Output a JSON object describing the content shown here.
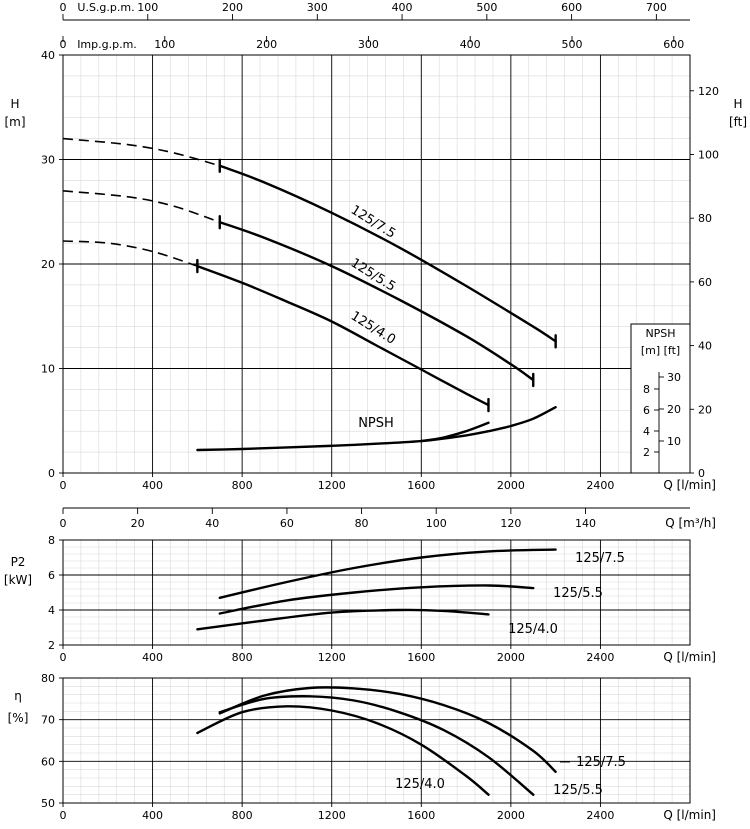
{
  "top_axes": {
    "usgpm": {
      "label": "U.S.g.p.m.",
      "ticks": [
        "0",
        "100",
        "200",
        "300",
        "400",
        "500",
        "600",
        "700"
      ],
      "values": [
        0,
        100,
        200,
        300,
        400,
        500,
        600,
        700
      ]
    },
    "impgpm": {
      "label": "Imp.g.p.m.",
      "ticks": [
        "0",
        "100",
        "200",
        "300",
        "400",
        "500",
        "600"
      ],
      "values": [
        0,
        100,
        200,
        300,
        400,
        500,
        600
      ]
    },
    "m3h": {
      "label": "Q [m³/h]",
      "ticks": [
        "0",
        "20",
        "40",
        "60",
        "80",
        "100",
        "120",
        "140"
      ],
      "values": [
        0,
        20,
        40,
        60,
        80,
        100,
        120,
        140
      ]
    }
  },
  "chart_data": [
    {
      "type": "line",
      "id": "head",
      "ylabel": "H [m]",
      "ylabel_right": "H [ft]",
      "xlabel": "Q [l/min]",
      "xlim": [
        0,
        2800
      ],
      "ylim": [
        0,
        40
      ],
      "x_ticks": [
        "0",
        "400",
        "800",
        "1200",
        "1600",
        "2000",
        "2400"
      ],
      "y_ticks": [
        "0",
        "10",
        "20",
        "30",
        "40"
      ],
      "y_right_ticks": [
        "0",
        "20",
        "40",
        "60",
        "80",
        "100",
        "120"
      ],
      "series": [
        {
          "name": "125/7.5",
          "x": [
            0,
            300,
            500,
            700,
            900,
            1200,
            1500,
            1800,
            2100,
            2200
          ],
          "y": [
            32,
            31.4,
            30.6,
            29.4,
            27.8,
            24.9,
            21.6,
            17.9,
            14,
            12.6
          ],
          "dashed_until": 700
        },
        {
          "name": "125/5.5",
          "x": [
            0,
            300,
            500,
            700,
            900,
            1200,
            1500,
            1800,
            2000,
            2100
          ],
          "y": [
            27,
            26.4,
            25.5,
            24,
            22.5,
            19.8,
            16.6,
            13.1,
            10.4,
            8.9
          ],
          "dashed_until": 700
        },
        {
          "name": "125/4.0",
          "x": [
            0,
            200,
            400,
            600,
            800,
            1000,
            1200,
            1400,
            1600,
            1800,
            1900
          ],
          "y": [
            22.2,
            22,
            21.2,
            19.8,
            18.2,
            16.4,
            14.5,
            12.2,
            9.9,
            7.6,
            6.5
          ],
          "dashed_until": 600
        }
      ],
      "npsh": {
        "label": "NPSH",
        "series": [
          {
            "x": [
              600,
              800,
              1000,
              1200,
              1400,
              1600,
              1700,
              1800,
              1900,
              2000,
              2100,
              2200
            ],
            "y": [
              2.2,
              2.3,
              2.45,
              2.6,
              2.8,
              3.05,
              3.3,
              3.6,
              4,
              4.5,
              5.2,
              6.3
            ]
          },
          {
            "x": [
              1600,
              1700,
              1800,
              1900
            ],
            "y": [
              3.05,
              3.4,
              4,
              4.8
            ]
          }
        ]
      },
      "npsh_box": {
        "title": "NPSH",
        "units": "[m] [ft]",
        "m_ticks": [
          "2",
          "4",
          "6",
          "8"
        ],
        "ft_ticks": [
          "10",
          "20",
          "30"
        ]
      }
    },
    {
      "type": "line",
      "id": "power",
      "ylabel": "P2 [kW]",
      "xlabel": "Q [l/min]",
      "xlim": [
        0,
        2800
      ],
      "ylim": [
        2,
        8
      ],
      "x_ticks": [
        "0",
        "400",
        "800",
        "1200",
        "1600",
        "2000",
        "2400"
      ],
      "y_ticks": [
        "2",
        "4",
        "6",
        "8"
      ],
      "series": [
        {
          "name": "125/7.5",
          "x": [
            700,
            1000,
            1300,
            1600,
            1900,
            2200
          ],
          "y": [
            4.7,
            5.6,
            6.4,
            7,
            7.35,
            7.45
          ]
        },
        {
          "name": "125/5.5",
          "x": [
            700,
            1000,
            1300,
            1600,
            1900,
            2100
          ],
          "y": [
            3.8,
            4.55,
            5,
            5.3,
            5.4,
            5.25
          ]
        },
        {
          "name": "125/4.0",
          "x": [
            600,
            900,
            1200,
            1500,
            1700,
            1900
          ],
          "y": [
            2.9,
            3.4,
            3.85,
            4,
            3.95,
            3.75
          ]
        }
      ]
    },
    {
      "type": "line",
      "id": "efficiency",
      "ylabel": "η [%]",
      "xlabel": "Q [l/min]",
      "xlim": [
        0,
        2800
      ],
      "ylim": [
        50,
        80
      ],
      "x_ticks": [
        "0",
        "400",
        "800",
        "1200",
        "1600",
        "2000",
        "2400"
      ],
      "y_ticks": [
        "50",
        "60",
        "70",
        "80"
      ],
      "series": [
        {
          "name": "125/7.5",
          "x": [
            700,
            900,
            1100,
            1300,
            1500,
            1700,
            1900,
            2100,
            2200
          ],
          "y": [
            71.5,
            75.8,
            77.6,
            77.5,
            76.2,
            73.5,
            69.2,
            62.5,
            57.5
          ]
        },
        {
          "name": "125/5.5",
          "x": [
            700,
            900,
            1100,
            1300,
            1500,
            1700,
            1900,
            2100
          ],
          "y": [
            71.8,
            75,
            75.6,
            74.6,
            71.8,
            67.5,
            61,
            52
          ]
        },
        {
          "name": "125/4.0",
          "x": [
            600,
            800,
            1000,
            1200,
            1400,
            1600,
            1800,
            1900
          ],
          "y": [
            66.8,
            71.8,
            73.2,
            72.2,
            69.2,
            64,
            56.5,
            52
          ]
        }
      ]
    }
  ]
}
